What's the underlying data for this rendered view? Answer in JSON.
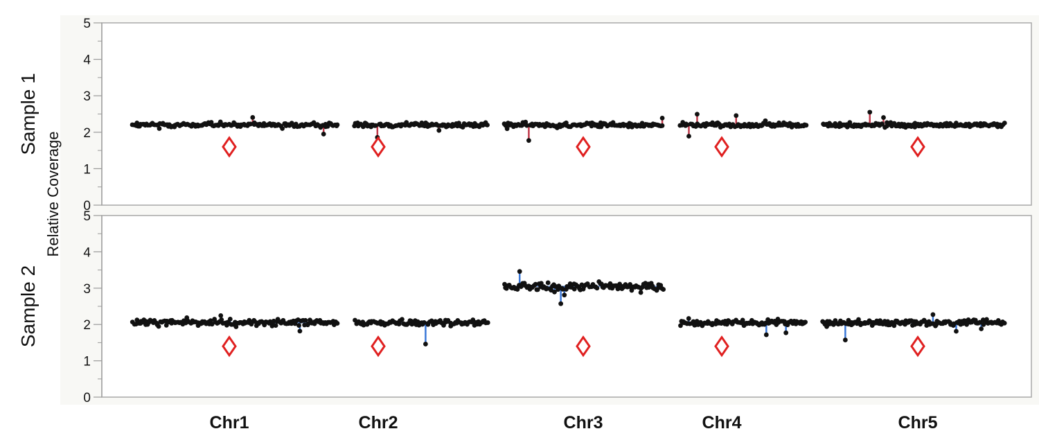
{
  "chart_data": {
    "type": "scatter",
    "y_axis_label": "Relative Coverage",
    "ylim": [
      0,
      5
    ],
    "y_ticks": [
      0,
      1,
      2,
      3,
      4,
      5
    ],
    "y_tick_labels": [
      "0",
      "1",
      "2",
      "3",
      "4",
      "5"
    ],
    "categories": [
      "Chr1",
      "Chr2",
      "Chr3",
      "Chr4",
      "Chr5"
    ],
    "grid": false,
    "legend": "none",
    "colors": {
      "points": "#111111",
      "sample1_segments": "#c0394a",
      "sample2_segments": "#3a78d8",
      "marker": "#e02020",
      "frame": "#a8a8a8",
      "background": "#f8f8f5"
    },
    "panels": [
      {
        "label": "Sample 1",
        "segment_color": "#c0394a",
        "chromosomes": [
          {
            "name": "Chr1",
            "coverage_mean": 2.2,
            "spread": 0.06,
            "marker": 1.6,
            "n": 150
          },
          {
            "name": "Chr2",
            "coverage_mean": 2.2,
            "spread": 0.06,
            "marker": 1.6,
            "n": 100
          },
          {
            "name": "Chr3",
            "coverage_mean": 2.2,
            "spread": 0.06,
            "marker": 1.6,
            "n": 120
          },
          {
            "name": "Chr4",
            "coverage_mean": 2.2,
            "spread": 0.06,
            "marker": 1.6,
            "n": 100
          },
          {
            "name": "Chr5",
            "coverage_mean": 2.2,
            "spread": 0.06,
            "marker": 1.6,
            "n": 150
          }
        ]
      },
      {
        "label": "Sample 2",
        "segment_color": "#3a78d8",
        "chromosomes": [
          {
            "name": "Chr1",
            "coverage_mean": 2.05,
            "spread": 0.08,
            "marker": 1.4,
            "n": 150
          },
          {
            "name": "Chr2",
            "coverage_mean": 2.05,
            "spread": 0.08,
            "marker": 1.4,
            "n": 100
          },
          {
            "name": "Chr3",
            "coverage_mean": 3.05,
            "spread": 0.12,
            "marker": 1.4,
            "n": 120
          },
          {
            "name": "Chr4",
            "coverage_mean": 2.05,
            "spread": 0.07,
            "marker": 1.4,
            "n": 100
          },
          {
            "name": "Chr5",
            "coverage_mean": 2.05,
            "spread": 0.08,
            "marker": 1.4,
            "n": 150
          }
        ]
      }
    ]
  }
}
